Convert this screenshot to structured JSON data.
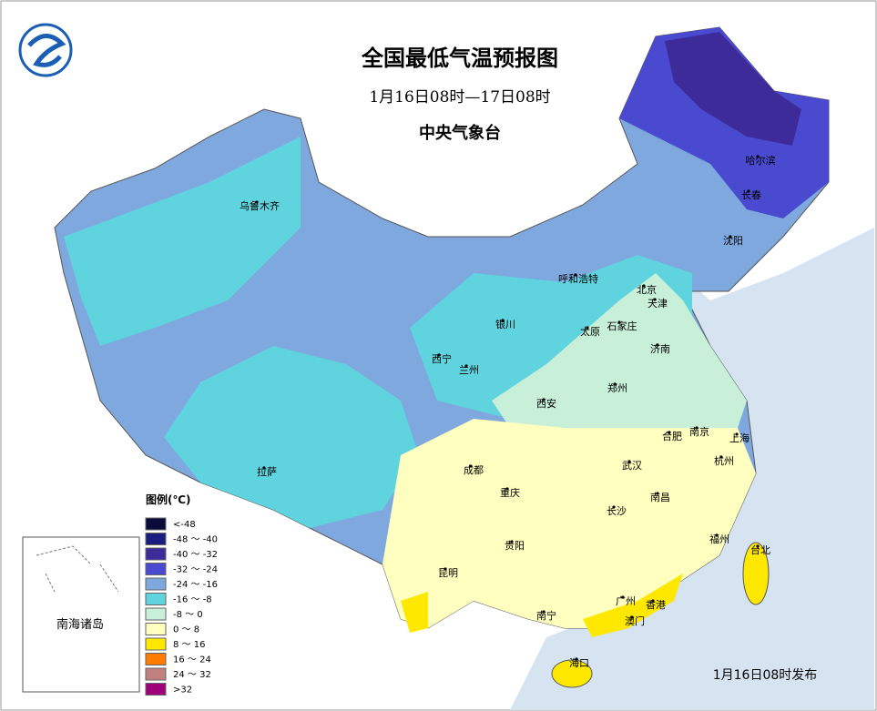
{
  "header": {
    "title": "全国最低气温预报图",
    "subtitle": "1月16日08时—17日08时",
    "issuer": "中央气象台"
  },
  "legend": {
    "title": "图例(℃)",
    "items": [
      {
        "label": "<-48",
        "color": "#0b0b3b"
      },
      {
        "label": "-48 ～ -40",
        "color": "#1c1c80"
      },
      {
        "label": "-40 ～ -32",
        "color": "#3d2b9a"
      },
      {
        "label": "-32 ～ -24",
        "color": "#4a4ad0"
      },
      {
        "label": "-24 ～ -16",
        "color": "#7fa8de"
      },
      {
        "label": "-16 ～ -8",
        "color": "#5fd3de"
      },
      {
        "label": "-8 ～ 0",
        "color": "#c8f0d8"
      },
      {
        "label": "0 ～ 8",
        "color": "#ffffc0"
      },
      {
        "label": "8 ～ 16",
        "color": "#ffe800"
      },
      {
        "label": "16 ～ 24",
        "color": "#ff7a00"
      },
      {
        "label": "24 ～ 32",
        "color": "#c08080"
      },
      {
        "label": ">32",
        "color": "#a0007a"
      }
    ]
  },
  "cities": [
    "乌鲁木齐",
    "哈尔滨",
    "长春",
    "沈阳",
    "呼和浩特",
    "北京",
    "天津",
    "银川",
    "石家庄",
    "太原",
    "济南",
    "西宁",
    "兰州",
    "郑州",
    "西安",
    "合肥",
    "南京",
    "上海",
    "拉萨",
    "成都",
    "武汉",
    "杭州",
    "重庆",
    "南昌",
    "长沙",
    "贵阳",
    "福州",
    "台北",
    "昆明",
    "广州",
    "香港",
    "南宁",
    "澳门",
    "海口"
  ],
  "inset": {
    "label": "南海诸岛"
  },
  "footer": "1月16日08时发布"
}
